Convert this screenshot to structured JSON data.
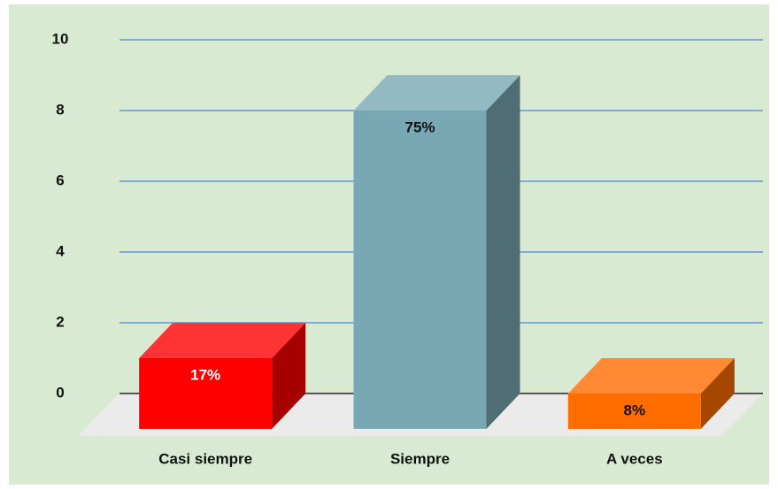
{
  "chart_data": {
    "type": "bar3d",
    "categories": [
      "Casi siempre",
      "Siempre",
      "A veces"
    ],
    "values": [
      2,
      9,
      1
    ],
    "labels": [
      "17%",
      "75%",
      "8%"
    ],
    "colors": [
      "#ff0000",
      "#78a8b4",
      "#ff6d00"
    ],
    "ylim": [
      0,
      10
    ],
    "yticks": [
      0,
      2,
      4,
      6,
      8,
      10
    ],
    "grid": true
  }
}
